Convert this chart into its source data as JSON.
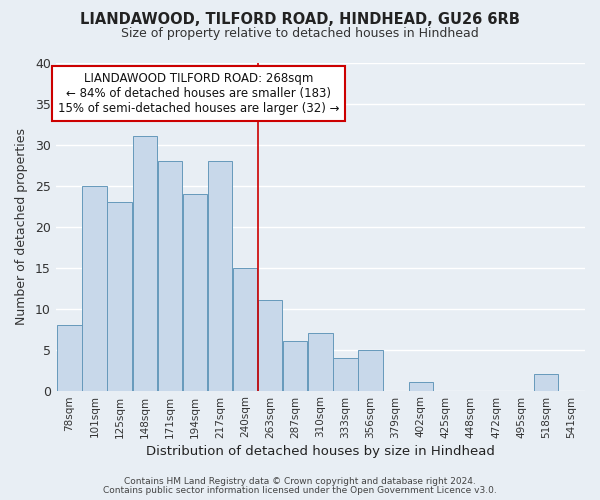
{
  "title": "LIANDAWOOD, TILFORD ROAD, HINDHEAD, GU26 6RB",
  "subtitle": "Size of property relative to detached houses in Hindhead",
  "xlabel": "Distribution of detached houses by size in Hindhead",
  "ylabel": "Number of detached properties",
  "bar_color": "#c8d8ea",
  "bar_edge_color": "#6699bb",
  "categories": [
    "78sqm",
    "101sqm",
    "125sqm",
    "148sqm",
    "171sqm",
    "194sqm",
    "217sqm",
    "240sqm",
    "263sqm",
    "287sqm",
    "310sqm",
    "333sqm",
    "356sqm",
    "379sqm",
    "402sqm",
    "425sqm",
    "448sqm",
    "472sqm",
    "495sqm",
    "518sqm",
    "541sqm"
  ],
  "values": [
    8,
    25,
    23,
    31,
    28,
    24,
    28,
    15,
    11,
    6,
    7,
    4,
    5,
    0,
    1,
    0,
    0,
    0,
    0,
    2,
    0
  ],
  "ylim": [
    0,
    40
  ],
  "annotation_title": "LIANDAWOOD TILFORD ROAD: 268sqm",
  "annotation_line1": "← 84% of detached houses are smaller (183)",
  "annotation_line2": "15% of semi-detached houses are larger (32) →",
  "footnote1": "Contains HM Land Registry data © Crown copyright and database right 2024.",
  "footnote2": "Contains public sector information licensed under the Open Government Licence v3.0.",
  "background_color": "#e8eef4",
  "grid_color": "#ffffff",
  "annotation_box_edge": "#cc0000",
  "red_line_index": 8
}
